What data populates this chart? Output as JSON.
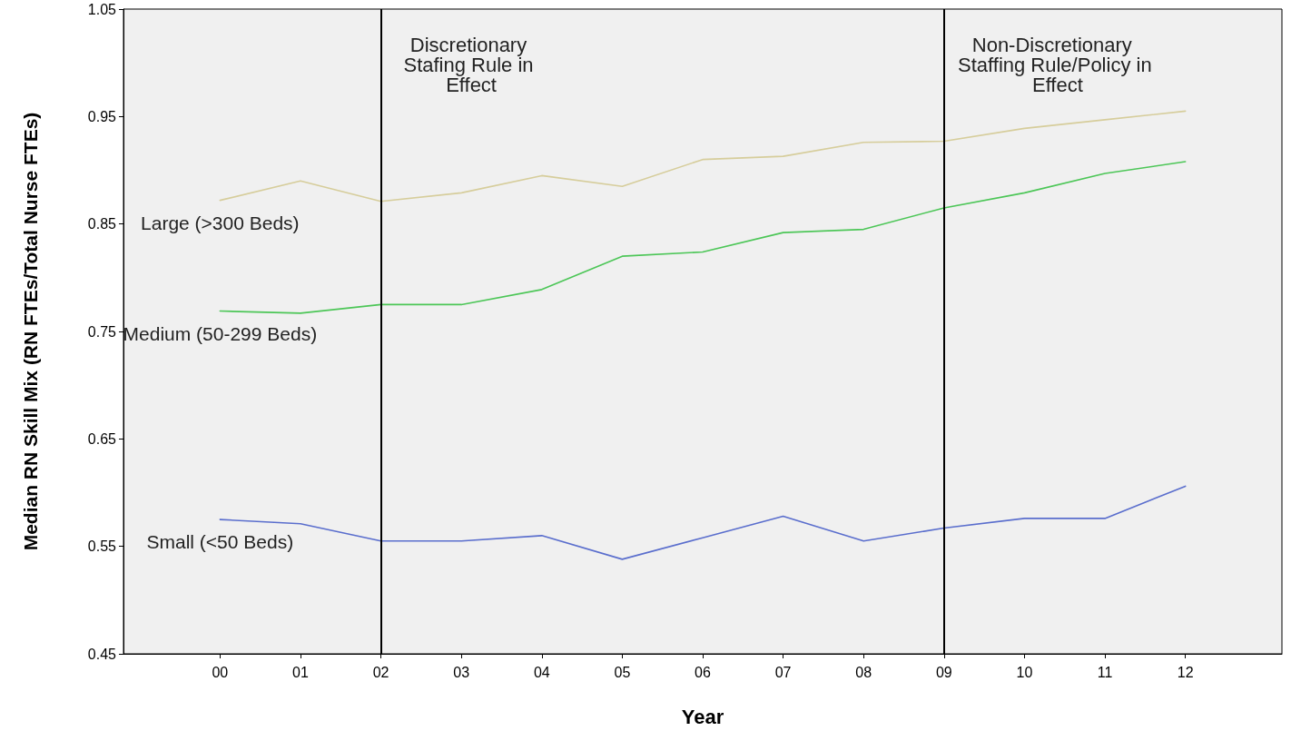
{
  "chart_data": {
    "type": "line",
    "xlabel": "Year",
    "ylabel": "Median RN Skill Mix (RN FTEs/Total Nurse FTEs)",
    "categories": [
      "00",
      "01",
      "02",
      "03",
      "04",
      "05",
      "06",
      "07",
      "08",
      "09",
      "10",
      "11",
      "12"
    ],
    "series": [
      {
        "name": "Large (>300 Beds)",
        "color": "#d6cd9b",
        "values": [
          0.872,
          0.89,
          0.871,
          0.879,
          0.895,
          0.885,
          0.91,
          0.913,
          0.926,
          0.927,
          0.939,
          0.947,
          0.955
        ]
      },
      {
        "name": "Medium (50-299 Beds)",
        "color": "#4cc657",
        "values": [
          0.769,
          0.767,
          0.775,
          0.775,
          0.789,
          0.82,
          0.824,
          0.842,
          0.845,
          0.865,
          0.879,
          0.897,
          0.908
        ]
      },
      {
        "name": "Small (<50 Beds)",
        "color": "#5a6ecd",
        "values": [
          0.575,
          0.571,
          0.555,
          0.555,
          0.56,
          0.538,
          0.558,
          0.578,
          0.555,
          0.567,
          0.576,
          0.576,
          0.606
        ]
      }
    ],
    "ylim": [
      0.45,
      1.05
    ],
    "yticks": [
      0.45,
      0.55,
      0.65,
      0.75,
      0.85,
      0.95,
      1.05
    ],
    "ref_lines": [
      {
        "axis": "x",
        "value": "02",
        "label": "Discretionary Stafing Rule in Effect",
        "color": "#000000"
      },
      {
        "axis": "x",
        "value": "09",
        "label": "Non-Discretionary Staffing Rule/Policy in Effect",
        "color": "#000000"
      }
    ],
    "grid": false,
    "legend": false,
    "marker": "none",
    "line_style": "solid"
  }
}
